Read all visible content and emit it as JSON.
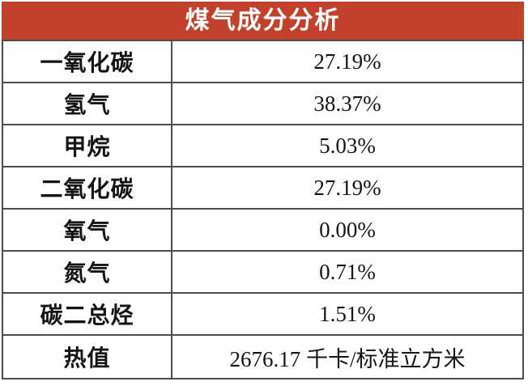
{
  "table": {
    "title": "煤气成分分析",
    "rows": [
      {
        "label": "一氧化碳",
        "value": "27.19%"
      },
      {
        "label": "氢气",
        "value": "38.37%"
      },
      {
        "label": "甲烷",
        "value": "5.03%"
      },
      {
        "label": "二氧化碳",
        "value": "27.19%"
      },
      {
        "label": "氧气",
        "value": "0.00%"
      },
      {
        "label": "氮气",
        "value": "0.71%"
      },
      {
        "label": "碳二总烃",
        "value": "1.51%"
      },
      {
        "label": "热值",
        "value": "2676.17 千卡/标准立方米"
      }
    ],
    "colors": {
      "header_bg": "#C2412C",
      "header_text": "#FFFFFF",
      "border_outer": "#2F2F2F",
      "border_inner": "#4C4C4C",
      "text": "#141414"
    }
  },
  "chart_data": {
    "type": "table",
    "title": "煤气成分分析",
    "rows": [
      [
        "一氧化碳",
        "27.19%"
      ],
      [
        "氢气",
        "38.37%"
      ],
      [
        "甲烷",
        "5.03%"
      ],
      [
        "二氧化碳",
        "27.19%"
      ],
      [
        "氧气",
        "0.00%"
      ],
      [
        "氮气",
        "0.71%"
      ],
      [
        "碳二总烃",
        "1.51%"
      ],
      [
        "热值",
        "2676.17 千卡/标准立方米"
      ]
    ],
    "legend_position": "none",
    "grid": true
  }
}
